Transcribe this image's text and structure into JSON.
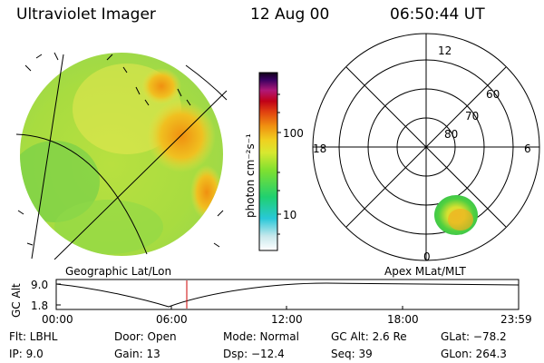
{
  "header": {
    "title": "Ultraviolet Imager",
    "date": "12 Aug 00",
    "time": "06:50:44 UT"
  },
  "colorbar": {
    "unit_label": "photon cm⁻²s⁻¹",
    "tick_100": "100",
    "tick_10": "10"
  },
  "polar": {
    "hour_12": "12",
    "hour_18": "18",
    "hour_6": "6",
    "hour_0": "0",
    "lat_60": "60",
    "lat_70": "70",
    "lat_80": "80"
  },
  "labels": {
    "left_map": "Geographic Lat/Lon",
    "right_map": "Apex MLat/MLT"
  },
  "altitude_plot": {
    "ylabel": "GC Alt",
    "y_top": "9.0",
    "y_bottom": "1.8",
    "x_ticks": [
      "00:00",
      "06:00",
      "12:00",
      "18:00",
      "23:59"
    ],
    "marker_color": "#cc0000"
  },
  "info": {
    "row1": {
      "filter": "Flt: LBHL",
      "door": "Door: Open",
      "mode": "Mode: Normal",
      "gc_alt": "GC Alt: 2.6 Re",
      "glat": "GLat: −78.2"
    },
    "row2": {
      "ip": "IP:  9.0",
      "gain": "Gain: 13",
      "dsp": "Dsp:  −12.4",
      "seq": "Seq: 39",
      "glon": "GLon: 264.3"
    }
  }
}
